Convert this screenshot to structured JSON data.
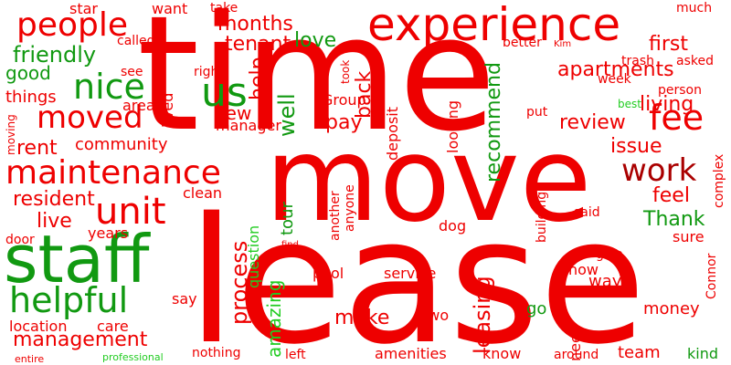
{
  "colors": {
    "red": "#ee0000",
    "green": "#119911",
    "dark_red": "#aa0000",
    "bright_green": "#22cc22"
  },
  "words": [
    {
      "t": "time",
      "c": "red"
    },
    {
      "t": "move",
      "c": "red"
    },
    {
      "t": "lease",
      "c": "red"
    },
    {
      "t": "staff",
      "c": "green"
    },
    {
      "t": "experience",
      "c": "red"
    },
    {
      "t": "maintenance",
      "c": "red"
    },
    {
      "t": "unit",
      "c": "red"
    },
    {
      "t": "helpful",
      "c": "green"
    },
    {
      "t": "people",
      "c": "red"
    },
    {
      "t": "moved",
      "c": "red"
    },
    {
      "t": "nice",
      "c": "green"
    },
    {
      "t": "us",
      "c": "green"
    },
    {
      "t": "fee",
      "c": "red"
    },
    {
      "t": "work",
      "c": "dark_red"
    },
    {
      "t": "management",
      "c": "red"
    },
    {
      "t": "friendly",
      "c": "green"
    },
    {
      "t": "apartments",
      "c": "red"
    },
    {
      "t": "living",
      "c": "red"
    },
    {
      "t": "love",
      "c": "green"
    },
    {
      "t": "first",
      "c": "red"
    },
    {
      "t": "months",
      "c": "red"
    },
    {
      "t": "tenant",
      "c": "red"
    },
    {
      "t": "help",
      "c": "red"
    },
    {
      "t": "back",
      "c": "red"
    },
    {
      "t": "well",
      "c": "green"
    },
    {
      "t": "review",
      "c": "red"
    },
    {
      "t": "recommend",
      "c": "green"
    },
    {
      "t": "pay",
      "c": "red"
    },
    {
      "t": "new",
      "c": "red"
    },
    {
      "t": "issue",
      "c": "red"
    },
    {
      "t": "feel",
      "c": "red"
    },
    {
      "t": "Thank",
      "c": "green"
    },
    {
      "t": "rent",
      "c": "red"
    },
    {
      "t": "community",
      "c": "red"
    },
    {
      "t": "resident",
      "c": "red"
    },
    {
      "t": "live",
      "c": "red"
    },
    {
      "t": "process",
      "c": "red"
    },
    {
      "t": "leasing",
      "c": "red"
    },
    {
      "t": "make",
      "c": "red"
    },
    {
      "t": "amazing",
      "c": "bright_green"
    },
    {
      "t": "good",
      "c": "green"
    },
    {
      "t": "things",
      "c": "red"
    },
    {
      "t": "star",
      "c": "red"
    },
    {
      "t": "want",
      "c": "red"
    },
    {
      "t": "take",
      "c": "red"
    },
    {
      "t": "called",
      "c": "red"
    },
    {
      "t": "see",
      "c": "red"
    },
    {
      "t": "right",
      "c": "red"
    },
    {
      "t": "area",
      "c": "red"
    },
    {
      "t": "lived",
      "c": "red"
    },
    {
      "t": "manager",
      "c": "red"
    },
    {
      "t": "moving",
      "c": "red"
    },
    {
      "t": "clean",
      "c": "red"
    },
    {
      "t": "years",
      "c": "red"
    },
    {
      "t": "door",
      "c": "red"
    },
    {
      "t": "tour",
      "c": "green"
    },
    {
      "t": "question",
      "c": "bright_green"
    },
    {
      "t": "deposit",
      "c": "red"
    },
    {
      "t": "Group",
      "c": "red"
    },
    {
      "t": "took",
      "c": "red"
    },
    {
      "t": "looking",
      "c": "red"
    },
    {
      "t": "another",
      "c": "red"
    },
    {
      "t": "anyone",
      "c": "red"
    },
    {
      "t": "find",
      "c": "red"
    },
    {
      "t": "pool",
      "c": "red"
    },
    {
      "t": "service",
      "c": "red"
    },
    {
      "t": "two",
      "c": "red"
    },
    {
      "t": "go",
      "c": "green"
    },
    {
      "t": "need",
      "c": "red"
    },
    {
      "t": "now",
      "c": "red"
    },
    {
      "t": "way",
      "c": "red"
    },
    {
      "t": "give",
      "c": "red"
    },
    {
      "t": "money",
      "c": "red"
    },
    {
      "t": "team",
      "c": "red"
    },
    {
      "t": "kind",
      "c": "green"
    },
    {
      "t": "Connor",
      "c": "red"
    },
    {
      "t": "around",
      "c": "red"
    },
    {
      "t": "know",
      "c": "red"
    },
    {
      "t": "amenities",
      "c": "red"
    },
    {
      "t": "left",
      "c": "red"
    },
    {
      "t": "nothing",
      "c": "red"
    },
    {
      "t": "professional",
      "c": "bright_green"
    },
    {
      "t": "entire",
      "c": "red"
    },
    {
      "t": "location",
      "c": "red"
    },
    {
      "t": "care",
      "c": "red"
    },
    {
      "t": "say",
      "c": "red"
    },
    {
      "t": "much",
      "c": "red"
    },
    {
      "t": "better",
      "c": "red"
    },
    {
      "t": "Kim",
      "c": "red"
    },
    {
      "t": "asked",
      "c": "red"
    },
    {
      "t": "trash",
      "c": "red"
    },
    {
      "t": "week",
      "c": "red"
    },
    {
      "t": "best",
      "c": "bright_green"
    },
    {
      "t": "person",
      "c": "red"
    },
    {
      "t": "put",
      "c": "red"
    },
    {
      "t": "complex",
      "c": "red"
    },
    {
      "t": "building",
      "c": "red"
    },
    {
      "t": "said",
      "c": "red"
    },
    {
      "t": "dog",
      "c": "red"
    },
    {
      "t": "sure",
      "c": "red"
    }
  ]
}
